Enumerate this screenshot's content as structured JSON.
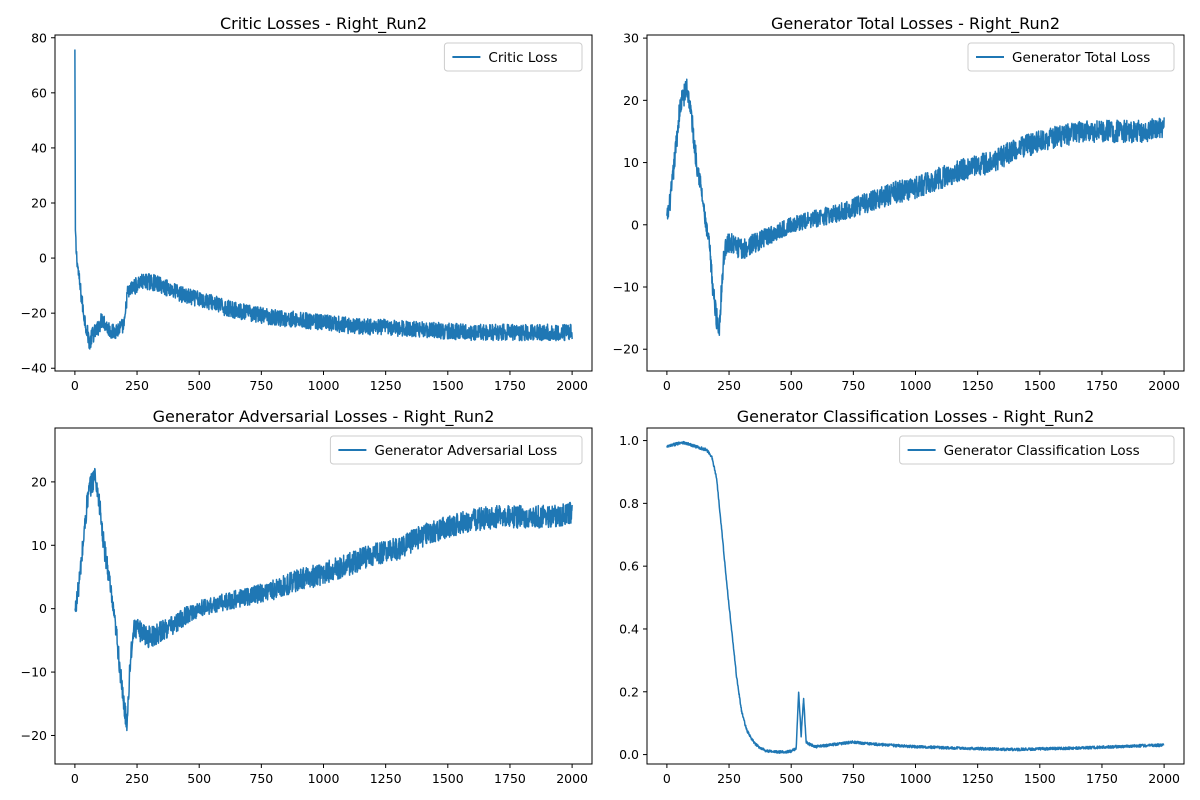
{
  "colors": {
    "series": "#1f77b4",
    "axis": "#000000",
    "legend_border": "#cccccc",
    "background": "#ffffff"
  },
  "chart_data": [
    {
      "type": "line",
      "title": "Critic Losses - Right_Run2",
      "xlabel": "",
      "ylabel": "",
      "xlim": [
        -80,
        2080
      ],
      "ylim": [
        -41,
        81
      ],
      "xticks": [
        0,
        250,
        500,
        750,
        1000,
        1250,
        1500,
        1750,
        2000
      ],
      "yticks": [
        -40,
        -20,
        0,
        20,
        40,
        60,
        80
      ],
      "grid": false,
      "legend": "top-right",
      "series": [
        {
          "name": "Critic Loss",
          "noise": 3,
          "x": [
            0,
            2,
            5,
            10,
            20,
            35,
            50,
            60,
            70,
            90,
            110,
            130,
            150,
            170,
            190,
            200,
            210,
            230,
            260,
            290,
            320,
            350,
            400,
            450,
            500,
            550,
            600,
            700,
            800,
            900,
            1000,
            1100,
            1200,
            1300,
            1400,
            1500,
            1600,
            1700,
            1800,
            1900,
            2000
          ],
          "y": [
            75,
            10,
            3,
            -2,
            -10,
            -20,
            -27,
            -31,
            -28,
            -26,
            -22,
            -25,
            -27,
            -26,
            -25,
            -24,
            -13,
            -11,
            -9,
            -8.5,
            -9,
            -10,
            -12,
            -14,
            -15,
            -16,
            -18,
            -20,
            -21.5,
            -22.5,
            -23.5,
            -24.5,
            -25,
            -25.5,
            -26,
            -26.5,
            -27,
            -27,
            -27,
            -27,
            -27
          ]
        }
      ]
    },
    {
      "type": "line",
      "title": "Generator Total Losses - Right_Run2",
      "xlabel": "",
      "ylabel": "",
      "xlim": [
        -80,
        2080
      ],
      "ylim": [
        -23.5,
        30.5
      ],
      "xticks": [
        0,
        250,
        500,
        750,
        1000,
        1250,
        1500,
        1750,
        2000
      ],
      "yticks": [
        -20,
        -10,
        0,
        10,
        20,
        30
      ],
      "grid": false,
      "legend": "top-right",
      "series": [
        {
          "name": "Generator Total Loss",
          "noise": 1.8,
          "x": [
            0,
            10,
            20,
            30,
            40,
            50,
            60,
            70,
            80,
            90,
            100,
            110,
            120,
            130,
            140,
            150,
            160,
            170,
            180,
            190,
            200,
            210,
            220,
            230,
            240,
            260,
            300,
            350,
            400,
            450,
            500,
            600,
            700,
            800,
            900,
            1000,
            1100,
            1200,
            1300,
            1400,
            1500,
            1600,
            1700,
            1800,
            1900,
            2000
          ],
          "y": [
            1,
            3,
            6,
            10,
            14,
            18,
            20,
            21,
            22,
            20,
            17,
            13,
            10,
            8,
            5,
            2,
            -1,
            -3,
            -8,
            -12,
            -15,
            -17,
            -10,
            -5,
            -3,
            -3,
            -4,
            -3,
            -2,
            -1,
            0,
            1,
            2,
            3.5,
            5,
            6,
            7.5,
            9,
            10,
            12,
            13.5,
            14.5,
            15,
            15,
            15,
            15.5
          ]
        }
      ]
    },
    {
      "type": "line",
      "title": "Generator Adversarial Losses - Right_Run2",
      "xlabel": "",
      "ylabel": "",
      "xlim": [
        -80,
        2080
      ],
      "ylim": [
        -24.5,
        28.5
      ],
      "xticks": [
        0,
        250,
        500,
        750,
        1000,
        1250,
        1500,
        1750,
        2000
      ],
      "yticks": [
        -20,
        -10,
        0,
        10,
        20
      ],
      "grid": false,
      "legend": "top-right",
      "series": [
        {
          "name": "Generator Adversarial Loss",
          "noise": 1.8,
          "x": [
            0,
            10,
            20,
            30,
            40,
            50,
            60,
            70,
            80,
            90,
            100,
            110,
            120,
            130,
            140,
            150,
            160,
            170,
            180,
            190,
            200,
            210,
            220,
            230,
            240,
            260,
            300,
            350,
            400,
            450,
            500,
            600,
            700,
            800,
            900,
            1000,
            1100,
            1200,
            1300,
            1400,
            1500,
            1600,
            1700,
            1800,
            1900,
            2000
          ],
          "y": [
            -0.5,
            2,
            5,
            9,
            13,
            17,
            19,
            20,
            21,
            19,
            16,
            12,
            9,
            7,
            4,
            1,
            -2,
            -5,
            -9,
            -13,
            -16,
            -18,
            -10,
            -5,
            -3,
            -3.5,
            -4.5,
            -3.5,
            -2.5,
            -1,
            0,
            1,
            2,
            3,
            4.5,
            5.5,
            7,
            8.5,
            9.5,
            11.5,
            13,
            14,
            14.5,
            14.5,
            14.5,
            15
          ]
        }
      ]
    },
    {
      "type": "line",
      "title": "Generator Classification Losses - Right_Run2",
      "xlabel": "",
      "ylabel": "",
      "xlim": [
        -80,
        2080
      ],
      "ylim": [
        -0.03,
        1.04
      ],
      "xticks": [
        0,
        250,
        500,
        750,
        1000,
        1250,
        1500,
        1750,
        2000
      ],
      "yticks": [
        0.0,
        0.2,
        0.4,
        0.6,
        0.8,
        1.0
      ],
      "ytick_labels": [
        "0.0",
        "0.2",
        "0.4",
        "0.6",
        "0.8",
        "1.0"
      ],
      "grid": false,
      "legend": "top-right",
      "series": [
        {
          "name": "Generator Classification Loss",
          "noise": 0.006,
          "x": [
            0,
            20,
            40,
            60,
            80,
            100,
            120,
            140,
            160,
            180,
            200,
            220,
            240,
            260,
            280,
            300,
            320,
            340,
            360,
            380,
            400,
            420,
            450,
            500,
            520,
            530,
            540,
            550,
            560,
            580,
            600,
            650,
            700,
            750,
            800,
            900,
            1000,
            1100,
            1200,
            1300,
            1400,
            1500,
            1600,
            1700,
            1800,
            1900,
            2000
          ],
          "y": [
            0.98,
            0.985,
            0.99,
            0.995,
            0.99,
            0.985,
            0.98,
            0.975,
            0.97,
            0.95,
            0.88,
            0.72,
            0.55,
            0.4,
            0.25,
            0.14,
            0.08,
            0.05,
            0.03,
            0.02,
            0.012,
            0.01,
            0.008,
            0.01,
            0.02,
            0.2,
            0.06,
            0.18,
            0.04,
            0.03,
            0.025,
            0.03,
            0.035,
            0.04,
            0.035,
            0.03,
            0.025,
            0.022,
            0.02,
            0.018,
            0.016,
            0.018,
            0.02,
            0.022,
            0.025,
            0.028,
            0.03
          ]
        }
      ]
    }
  ]
}
